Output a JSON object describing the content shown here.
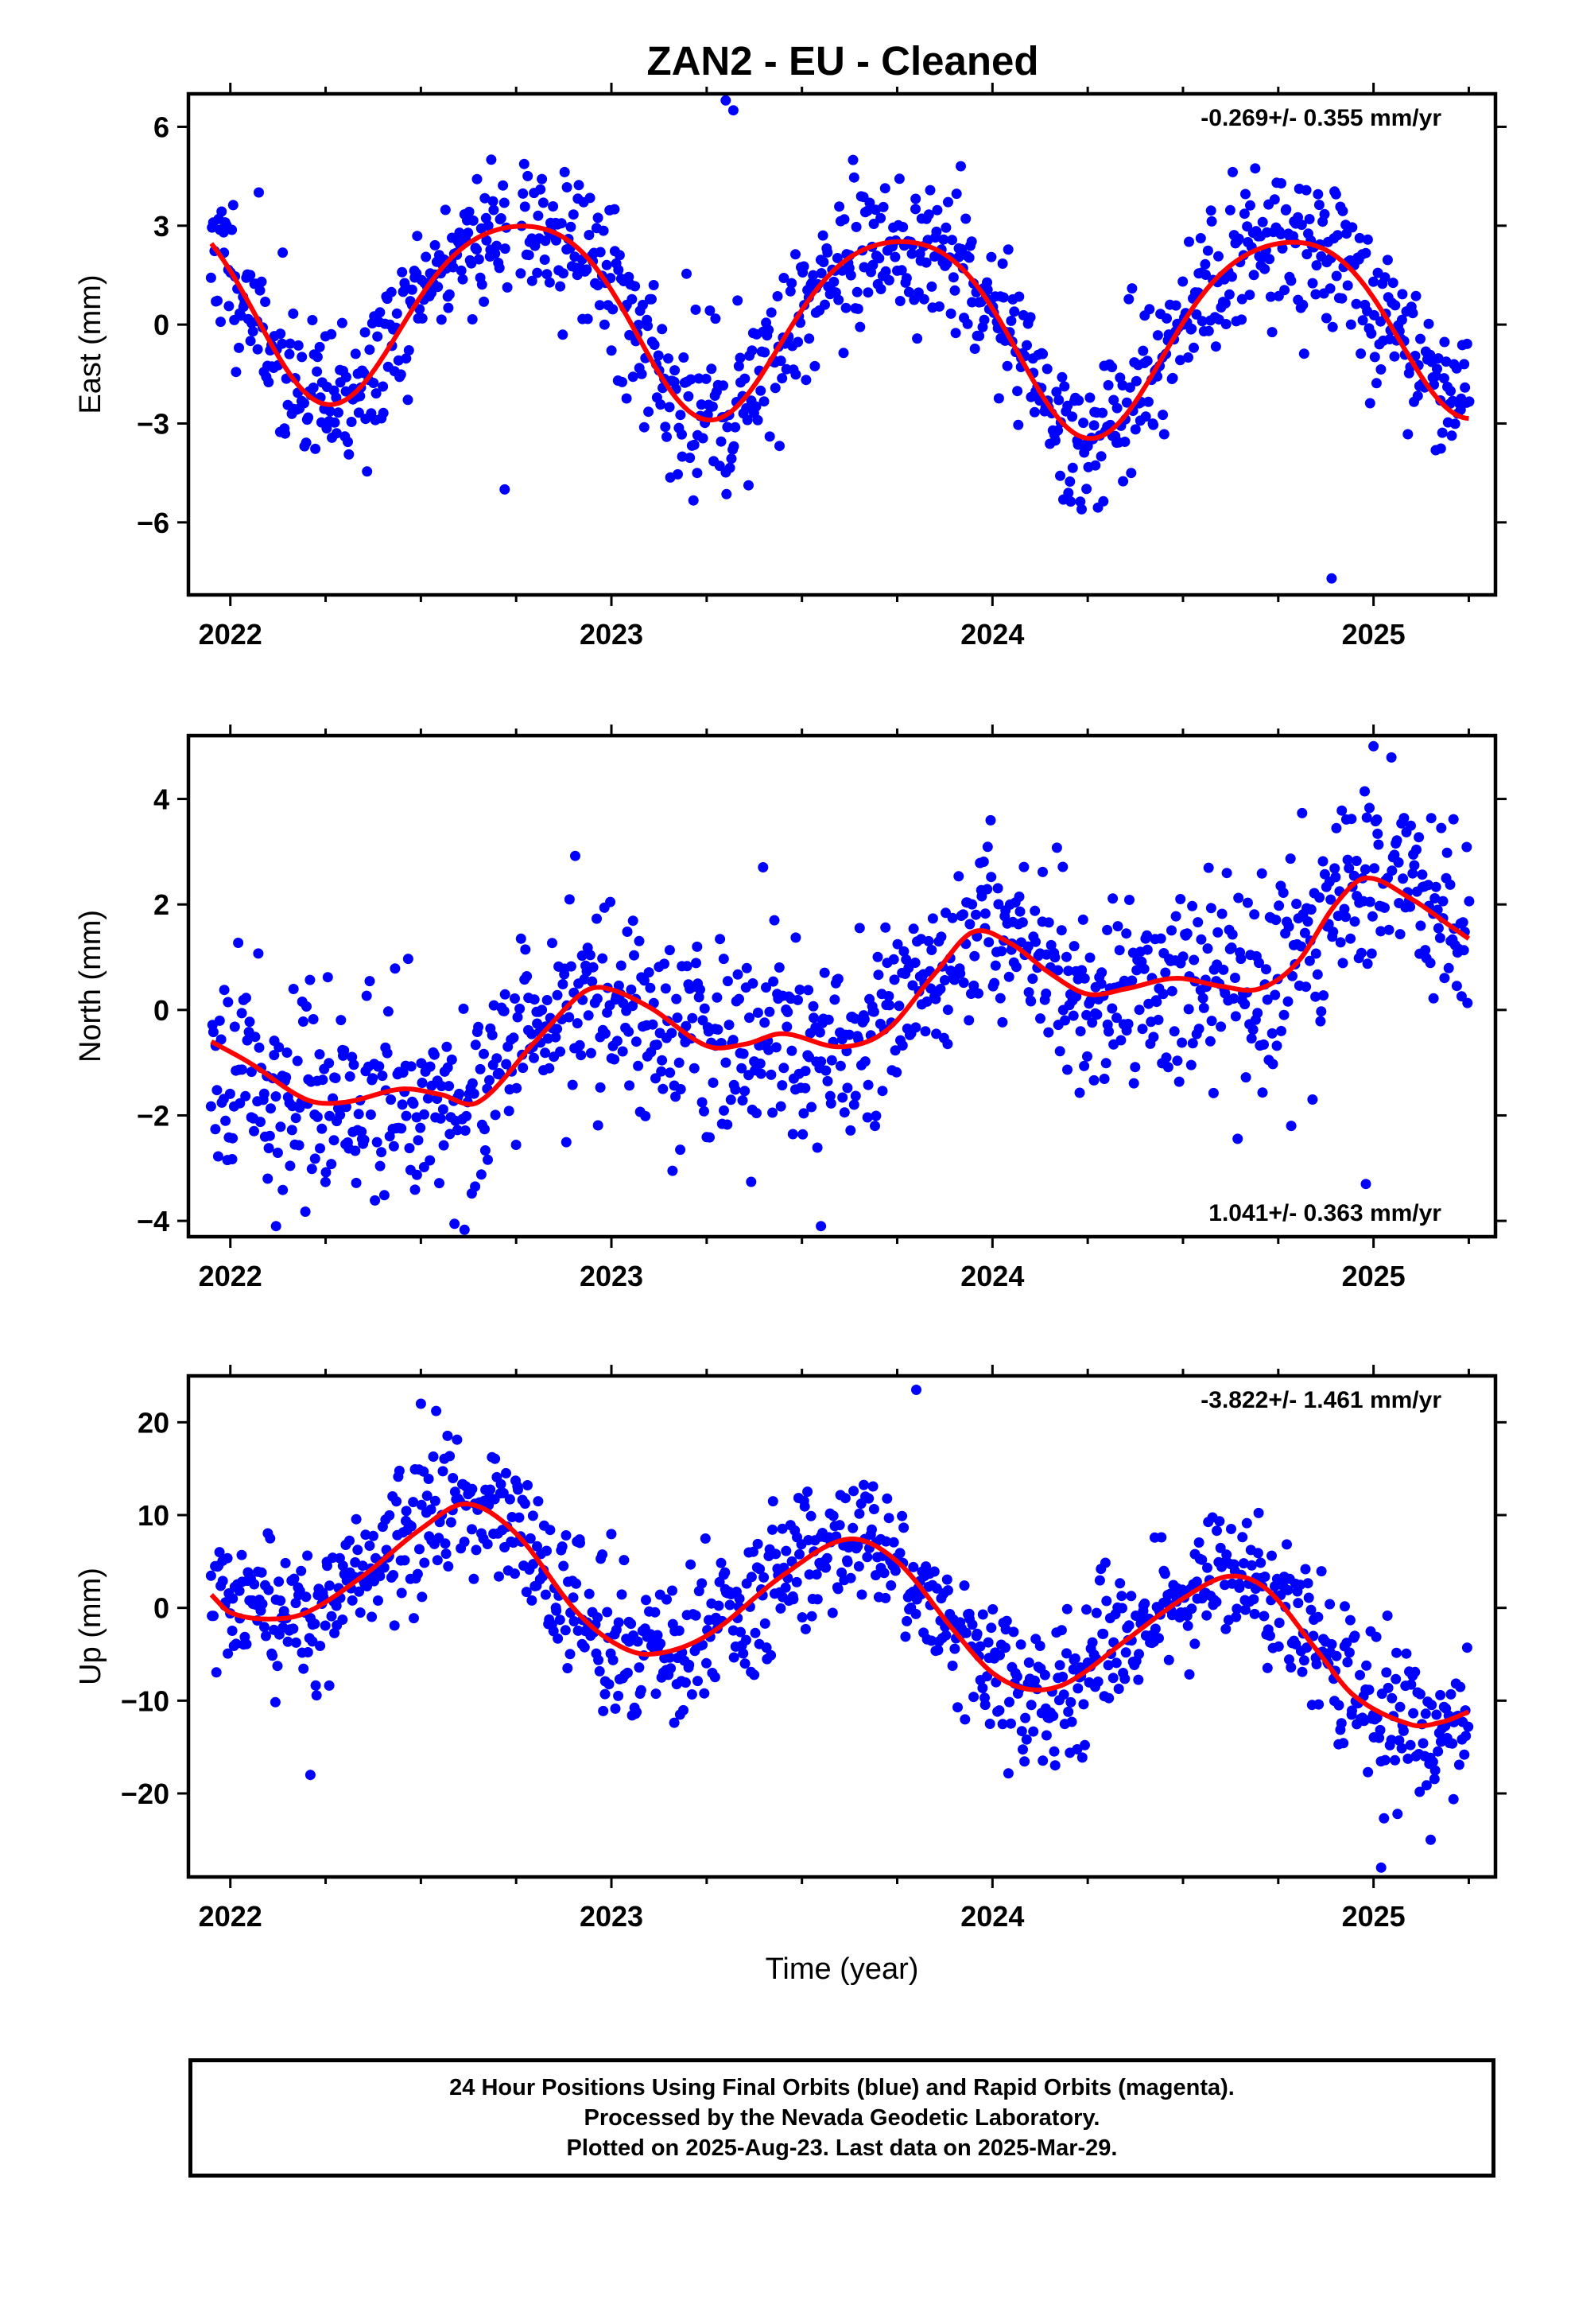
{
  "title": "ZAN2  - EU - Cleaned",
  "xlabel": "Time (year)",
  "footer": {
    "line1": "24 Hour Positions Using Final Orbits (blue) and Rapid Orbits (magenta).",
    "line2": "Processed by the Nevada Geodetic Laboratory.",
    "line3": "Plotted on 2025-Aug-23. Last data on 2025-Mar-29."
  },
  "colors": {
    "data_points": "#0000ff",
    "fit_line": "#ff0000",
    "frame": "#000000"
  },
  "chart_data": [
    {
      "type": "scatter",
      "ylabel": "East (mm)",
      "annotation": "-0.269+/- 0.355 mm/yr",
      "annotation_position": "top-right",
      "xlim": [
        2021.89,
        2025.32
      ],
      "ylim": [
        -8.2,
        7.0
      ],
      "yticks": [
        -6,
        -3,
        0,
        3,
        6
      ],
      "ytick_labels": [
        "−6",
        "−3",
        "0",
        "3",
        "6"
      ],
      "xticks": [
        2022,
        2023,
        2024,
        2025
      ],
      "xtick_labels": [
        "2022",
        "2023",
        "2024",
        "2025"
      ],
      "minor_xticks_per_year": 4,
      "series": [
        {
          "kind": "points",
          "noise": 1.1,
          "seed": 11,
          "outliers": [
            [
              2022.72,
              -5.0
            ],
            [
              2024.89,
              -7.7
            ],
            [
              2023.3,
              6.8
            ],
            [
              2023.32,
              6.5
            ]
          ]
        },
        {
          "kind": "fit",
          "model": {
            "offset": 0.45,
            "rate": -0.269,
            "t0": 2023.6,
            "annual": [
              0.2,
              -2.85
            ],
            "semiannual": [
              0.4,
              0.0
            ],
            "trend_mod": [
              [
                2021.9,
                1.1
              ],
              [
                2022.6,
                0.6
              ],
              [
                2023.4,
                0.3
              ],
              [
                2024.3,
                -0.2
              ],
              [
                2025.32,
                0.45
              ]
            ]
          },
          "x_range": [
            2021.95,
            2025.25
          ]
        }
      ]
    },
    {
      "type": "scatter",
      "ylabel": "North (mm)",
      "annotation": "1.041+/- 0.363 mm/yr",
      "annotation_position": "bottom-right",
      "xlim": [
        2021.89,
        2025.32
      ],
      "ylim": [
        -4.3,
        5.2
      ],
      "yticks": [
        -4,
        -2,
        0,
        2,
        4
      ],
      "ytick_labels": [
        "−4",
        "−2",
        "0",
        "2",
        "4"
      ],
      "xticks": [
        2022,
        2023,
        2024,
        2025
      ],
      "xtick_labels": [
        "2022",
        "2023",
        "2024",
        "2025"
      ],
      "minor_xticks_per_year": 4,
      "series": [
        {
          "kind": "points",
          "noise": 0.95,
          "seed": 23,
          "outliers": [
            [
              2023.55,
              -4.1
            ],
            [
              2025.0,
              5.0
            ],
            [
              2024.98,
              -3.3
            ],
            [
              2022.12,
              -4.1
            ]
          ]
        },
        {
          "kind": "fit",
          "model": {
            "knots": [
              [
                2021.95,
                -0.6
              ],
              [
                2022.05,
                -1.0
              ],
              [
                2022.2,
                -1.7
              ],
              [
                2022.3,
                -1.75
              ],
              [
                2022.45,
                -1.5
              ],
              [
                2022.55,
                -1.6
              ],
              [
                2022.65,
                -1.75
              ],
              [
                2022.8,
                -0.6
              ],
              [
                2022.92,
                0.3
              ],
              [
                2022.98,
                0.42
              ],
              [
                2023.1,
                0.05
              ],
              [
                2023.25,
                -0.68
              ],
              [
                2023.35,
                -0.65
              ],
              [
                2023.45,
                -0.45
              ],
              [
                2023.6,
                -0.7
              ],
              [
                2023.72,
                -0.4
              ],
              [
                2023.85,
                0.7
              ],
              [
                2023.95,
                1.48
              ],
              [
                2024.05,
                1.25
              ],
              [
                2024.15,
                0.7
              ],
              [
                2024.25,
                0.3
              ],
              [
                2024.35,
                0.4
              ],
              [
                2024.48,
                0.6
              ],
              [
                2024.6,
                0.45
              ],
              [
                2024.7,
                0.4
              ],
              [
                2024.8,
                0.9
              ],
              [
                2024.9,
                2.0
              ],
              [
                2024.98,
                2.5
              ],
              [
                2025.1,
                2.1
              ],
              [
                2025.2,
                1.6
              ],
              [
                2025.25,
                1.35
              ]
            ]
          },
          "x_range": [
            2021.95,
            2025.25
          ]
        }
      ]
    },
    {
      "type": "scatter",
      "ylabel": "Up (mm)",
      "annotation": "-3.822+/- 1.461 mm/yr",
      "annotation_position": "top-right",
      "xlim": [
        2021.89,
        2025.32
      ],
      "ylim": [
        -29,
        25
      ],
      "yticks": [
        -20,
        -10,
        0,
        10,
        20
      ],
      "ytick_labels": [
        "−20",
        "−10",
        "0",
        "10",
        "20"
      ],
      "xticks": [
        2022,
        2023,
        2024,
        2025
      ],
      "xtick_labels": [
        "2022",
        "2023",
        "2024",
        "2025"
      ],
      "minor_xticks_per_year": 4,
      "series": [
        {
          "kind": "points",
          "noise": 3.8,
          "seed": 37,
          "outliers": [
            [
              2022.21,
              -18.0
            ],
            [
              2022.5,
              22.0
            ],
            [
              2023.8,
              23.5
            ],
            [
              2025.02,
              -28.0
            ],
            [
              2025.15,
              -25.0
            ]
          ]
        },
        {
          "kind": "fit",
          "model": {
            "knots": [
              [
                2021.95,
                1.4
              ],
              [
                2022.0,
                -0.5
              ],
              [
                2022.1,
                -1.2
              ],
              [
                2022.2,
                -0.5
              ],
              [
                2022.35,
                3.5
              ],
              [
                2022.5,
                8.5
              ],
              [
                2022.62,
                11.2
              ],
              [
                2022.75,
                8.0
              ],
              [
                2022.9,
                0.0
              ],
              [
                2023.0,
                -3.6
              ],
              [
                2023.1,
                -5.0
              ],
              [
                2023.25,
                -3.0
              ],
              [
                2023.45,
                3.5
              ],
              [
                2023.62,
                7.4
              ],
              [
                2023.75,
                5.0
              ],
              [
                2023.9,
                -2.5
              ],
              [
                2024.0,
                -7.0
              ],
              [
                2024.1,
                -8.8
              ],
              [
                2024.2,
                -8.0
              ],
              [
                2024.35,
                -3.5
              ],
              [
                2024.5,
                1.0
              ],
              [
                2024.62,
                3.4
              ],
              [
                2024.72,
                2.0
              ],
              [
                2024.85,
                -4.5
              ],
              [
                2024.95,
                -9.5
              ],
              [
                2025.1,
                -12.6
              ],
              [
                2025.18,
                -12.3
              ],
              [
                2025.25,
                -11.2
              ]
            ]
          },
          "x_range": [
            2021.95,
            2025.25
          ]
        }
      ]
    }
  ]
}
